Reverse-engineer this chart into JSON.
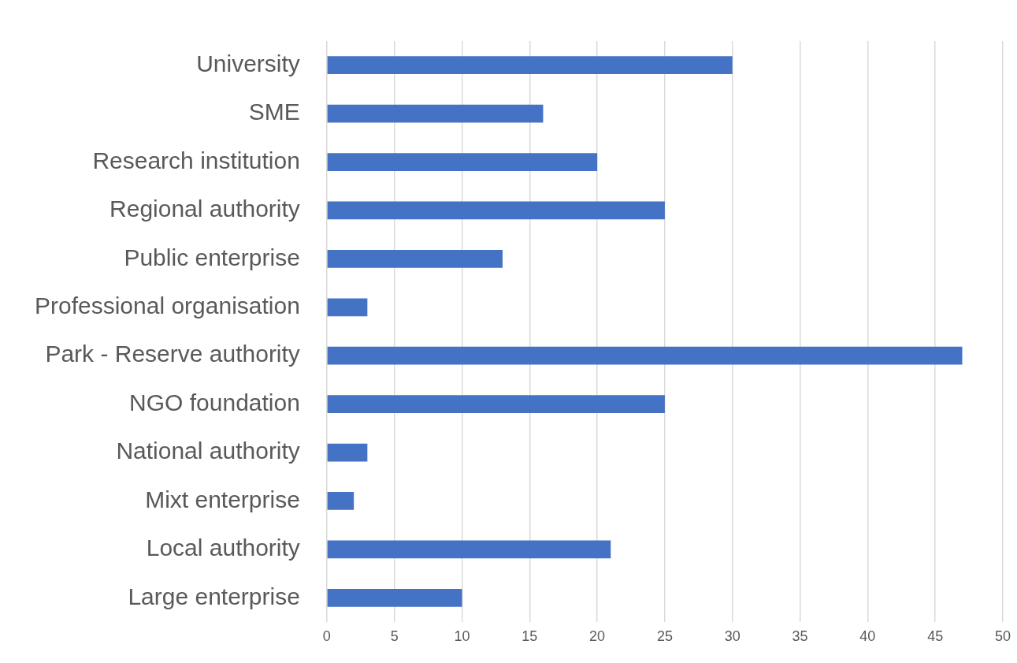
{
  "chart_data": {
    "type": "bar",
    "orientation": "horizontal",
    "categories": [
      "University",
      "SME",
      "Research institution",
      "Regional authority",
      "Public enterprise",
      "Professional organisation",
      "Park - Reserve authority",
      "NGO foundation",
      "National authority",
      "Mixt enterprise",
      "Local authority",
      "Large enterprise"
    ],
    "values": [
      30,
      16,
      20,
      25,
      13,
      3,
      47,
      25,
      3,
      2,
      21,
      10
    ],
    "color": "#4472c4",
    "xlim": [
      0,
      50
    ],
    "xticks": [
      0,
      5,
      10,
      15,
      20,
      25,
      30,
      35,
      40,
      45,
      50
    ],
    "grid": "x",
    "legend": false
  }
}
